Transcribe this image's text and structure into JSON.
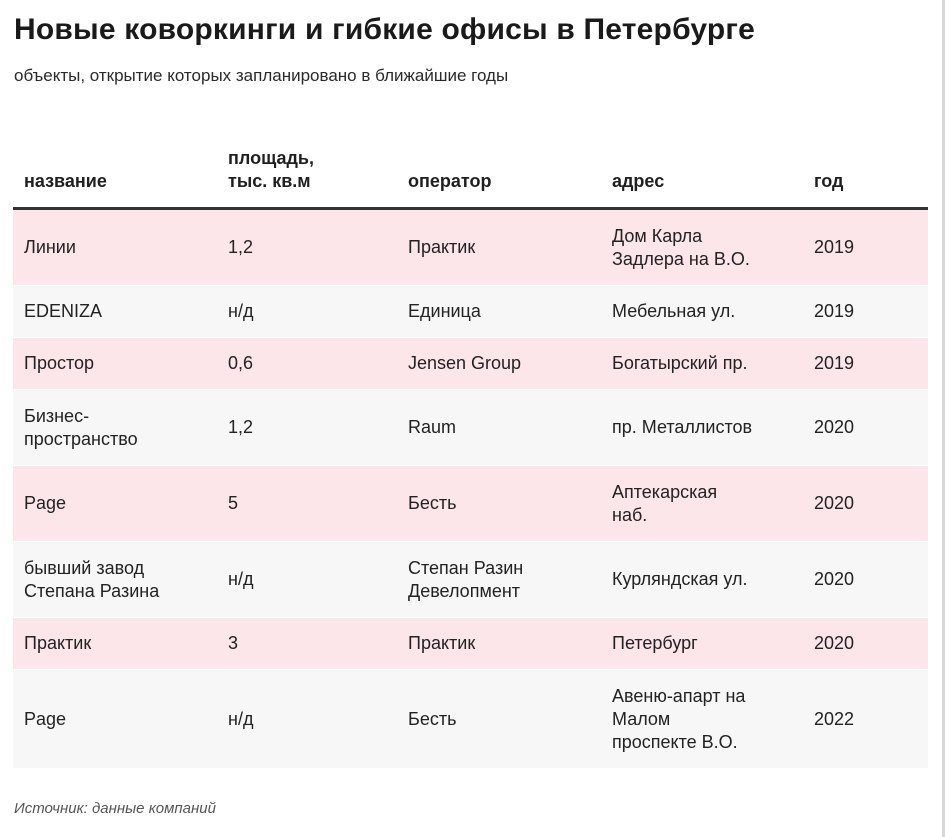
{
  "header": {
    "title": "Новые коворкинги и гибкие офисы в Петербурге",
    "subtitle": "объекты, открытие которых запланировано в ближайшие годы"
  },
  "table": {
    "columns": {
      "name": "название",
      "area_line1": "площадь,",
      "area_line2": "тыс. кв.м",
      "operator": "оператор",
      "address": "адрес",
      "year": "год"
    },
    "rows": [
      {
        "name": [
          "Линии"
        ],
        "area": "1,2",
        "operator": [
          "Практик"
        ],
        "address": [
          "Дом Карла",
          "Задлера на В.О."
        ],
        "year": "2019"
      },
      {
        "name": [
          "EDENIZA"
        ],
        "area": "н/д",
        "operator": [
          "Единица"
        ],
        "address": [
          "Мебельная ул."
        ],
        "year": "2019"
      },
      {
        "name": [
          "Простор"
        ],
        "area": "0,6",
        "operator": [
          "Jensen Group"
        ],
        "address": [
          "Богатырский пр."
        ],
        "year": "2019"
      },
      {
        "name": [
          "Бизнес-",
          "пространство"
        ],
        "area": "1,2",
        "operator": [
          "Raum"
        ],
        "address": [
          "пр. Металлистов"
        ],
        "year": "2020"
      },
      {
        "name": [
          "Page"
        ],
        "area": "5",
        "operator": [
          "Бесть"
        ],
        "address": [
          "Аптекарская",
          "наб."
        ],
        "year": "2020"
      },
      {
        "name": [
          "бывший завод",
          "Степана Разина"
        ],
        "area": "н/д",
        "operator": [
          "Степан Разин",
          "Девелопмент"
        ],
        "address": [
          "Курляндская ул."
        ],
        "year": "2020"
      },
      {
        "name": [
          "Практик"
        ],
        "area": "3",
        "operator": [
          "Практик"
        ],
        "address": [
          "Петербург"
        ],
        "year": "2020"
      },
      {
        "name": [
          "Page"
        ],
        "area": "н/д",
        "operator": [
          "Бесть"
        ],
        "address": [
          "Авеню-апарт на",
          "Малом",
          "проспекте В.О."
        ],
        "year": "2022"
      }
    ]
  },
  "footer": {
    "source": "Источник: данные компаний"
  },
  "colors": {
    "row_pink": "#fde6ea",
    "row_gray": "#f7f7f7",
    "header_rule": "#333333"
  }
}
